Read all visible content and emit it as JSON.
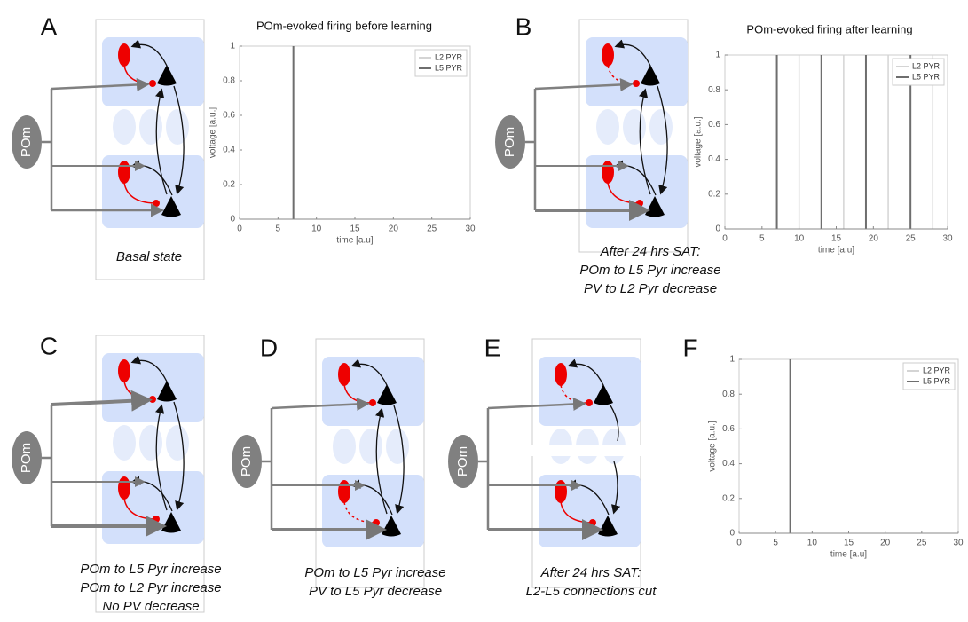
{
  "chart_data": [
    {
      "type": "spikes",
      "title": "POm-evoked firing before learning",
      "x_label": "time [a.u]",
      "y_label": "voltage [a.u.]",
      "xlim": [
        0,
        30
      ],
      "ylim": [
        0,
        1
      ],
      "xticks": [
        0,
        5,
        10,
        15,
        20,
        25,
        30
      ],
      "yticks": [
        0,
        0.2,
        0.4,
        0.6,
        0.8,
        1
      ],
      "series": [
        {
          "name": "L2 PYR",
          "color": "#d4d4d4",
          "x": [
            7
          ],
          "values": [
            1
          ]
        },
        {
          "name": "L5 PYR",
          "color": "#6e6e6e",
          "x": [
            7
          ],
          "values": [
            1
          ]
        }
      ]
    },
    {
      "type": "spikes",
      "title": "POm-evoked firing after learning",
      "x_label": "time [a.u]",
      "y_label": "voltage [a.u.]",
      "xlim": [
        0,
        30
      ],
      "ylim": [
        0,
        1
      ],
      "xticks": [
        0,
        5,
        10,
        15,
        20,
        25,
        30
      ],
      "yticks": [
        0,
        0.2,
        0.4,
        0.6,
        0.8,
        1
      ],
      "series": [
        {
          "name": "L2 PYR",
          "color": "#d4d4d4",
          "x": [
            10,
            16,
            22,
            28
          ],
          "values": [
            1,
            1,
            1,
            1
          ]
        },
        {
          "name": "L5 PYR",
          "color": "#6e6e6e",
          "x": [
            7,
            13,
            19,
            25
          ],
          "values": [
            1,
            1,
            1,
            1
          ]
        }
      ]
    },
    {
      "type": "spikes",
      "x_label": "time [a.u]",
      "y_label": "voltage [a.u.]",
      "xlim": [
        0,
        30
      ],
      "ylim": [
        0,
        1
      ],
      "xticks": [
        0,
        5,
        10,
        15,
        20,
        25,
        30
      ],
      "yticks": [
        0,
        0.2,
        0.4,
        0.6,
        0.8,
        1
      ],
      "series": [
        {
          "name": "L2 PYR",
          "color": "#d4d4d4",
          "x": [
            7
          ],
          "values": [
            1
          ]
        },
        {
          "name": "L5 PYR",
          "color": "#6e6e6e",
          "x": [
            7
          ],
          "values": [
            1
          ]
        }
      ]
    }
  ],
  "panels": [
    {
      "letter": "A",
      "source": "POm",
      "caption": [
        "Basal state"
      ]
    },
    {
      "letter": "B",
      "source": "POm",
      "caption": [
        "After 24 hrs SAT:",
        "POm to L5 Pyr increase",
        "PV to L2 Pyr decrease"
      ]
    },
    {
      "letter": "C",
      "source": "POm",
      "caption": [
        "POm to L5 Pyr increase",
        "POm to L2 Pyr increase",
        "No PV decrease"
      ]
    },
    {
      "letter": "D",
      "source": "POm",
      "caption": [
        "POm to L5 Pyr increase",
        "PV to L5 Pyr decrease"
      ]
    },
    {
      "letter": "E",
      "source": "POm",
      "caption": [
        "After 24 hrs SAT:",
        "L2-L5 connections cut"
      ]
    },
    {
      "letter": "F"
    }
  ]
}
